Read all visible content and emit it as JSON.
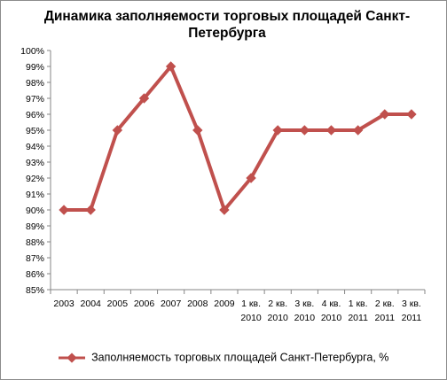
{
  "chart_data": {
    "type": "line",
    "title_lines": [
      "Динамика заполняемости торговых площадей Санкт-",
      "Петербурга"
    ],
    "categories": [
      [
        "2003"
      ],
      [
        "2004"
      ],
      [
        "2005"
      ],
      [
        "2006"
      ],
      [
        "2007"
      ],
      [
        "2008"
      ],
      [
        "2009"
      ],
      [
        "1 кв.",
        "2010"
      ],
      [
        "2 кв.",
        "2010"
      ],
      [
        "3 кв.",
        "2010"
      ],
      [
        "4 кв.",
        "2010"
      ],
      [
        "1 кв.",
        "2011"
      ],
      [
        "2 кв.",
        "2011"
      ],
      [
        "3 кв.",
        "2011"
      ]
    ],
    "series": [
      {
        "name": "Заполняемость торговых  площадей Санкт-Петербурга, %",
        "values": [
          90,
          90,
          95,
          97,
          99,
          95,
          90,
          92,
          95,
          95,
          95,
          95,
          96,
          96
        ],
        "color": "#c0504d"
      }
    ],
    "ylim": [
      85,
      100
    ],
    "ytick_labels": [
      "85%",
      "86%",
      "87%",
      "88%",
      "89%",
      "90%",
      "91%",
      "92%",
      "93%",
      "94%",
      "95%",
      "96%",
      "97%",
      "98%",
      "99%",
      "100%"
    ],
    "grid": false,
    "legend_position": "bottom"
  }
}
